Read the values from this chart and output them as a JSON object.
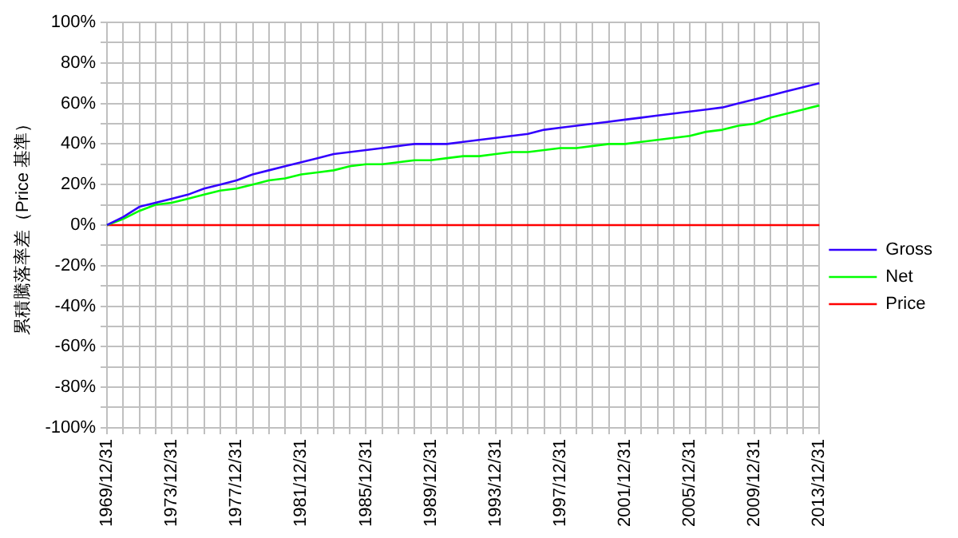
{
  "chart_data": {
    "type": "line",
    "ylabel": "累積騰落率差（Price 基準）",
    "categories": [
      "1969/12/31",
      null,
      null,
      null,
      "1973/12/31",
      null,
      null,
      null,
      "1977/12/31",
      null,
      null,
      null,
      "1981/12/31",
      null,
      null,
      null,
      "1985/12/31",
      null,
      null,
      null,
      "1989/12/31",
      null,
      null,
      null,
      "1993/12/31",
      null,
      null,
      null,
      "1997/12/31",
      null,
      null,
      null,
      "2001/12/31",
      null,
      null,
      null,
      "2005/12/31",
      null,
      null,
      null,
      "2009/12/31",
      null,
      null,
      null,
      "2013/12/31"
    ],
    "series": [
      {
        "name": "Gross",
        "color": "#3300ff",
        "values": [
          0,
          4,
          9,
          11,
          13,
          15,
          18,
          20,
          22,
          25,
          27,
          29,
          31,
          33,
          35,
          36,
          37,
          38,
          39,
          40,
          40,
          40,
          41,
          42,
          43,
          44,
          45,
          47,
          48,
          49,
          50,
          51,
          52,
          53,
          54,
          55,
          56,
          57,
          58,
          60,
          62,
          64,
          66,
          68,
          70
        ]
      },
      {
        "name": "Net",
        "color": "#00ff00",
        "values": [
          0,
          3,
          7,
          10,
          11,
          13,
          15,
          17,
          18,
          20,
          22,
          23,
          25,
          26,
          27,
          29,
          30,
          30,
          31,
          32,
          32,
          33,
          34,
          34,
          35,
          36,
          36,
          37,
          38,
          38,
          39,
          40,
          40,
          41,
          42,
          43,
          44,
          46,
          47,
          49,
          50,
          53,
          55,
          57,
          59
        ]
      },
      {
        "name": "Price",
        "color": "#ff0000",
        "values": [
          0,
          0,
          0,
          0,
          0,
          0,
          0,
          0,
          0,
          0,
          0,
          0,
          0,
          0,
          0,
          0,
          0,
          0,
          0,
          0,
          0,
          0,
          0,
          0,
          0,
          0,
          0,
          0,
          0,
          0,
          0,
          0,
          0,
          0,
          0,
          0,
          0,
          0,
          0,
          0,
          0,
          0,
          0,
          0,
          0
        ]
      }
    ],
    "ylim": [
      -100,
      100
    ],
    "yticks": [
      {
        "value": -100,
        "label": "-100%"
      },
      {
        "value": -90,
        "label": null
      },
      {
        "value": -80,
        "label": "-80%"
      },
      {
        "value": -70,
        "label": null
      },
      {
        "value": -60,
        "label": "-60%"
      },
      {
        "value": -50,
        "label": null
      },
      {
        "value": -40,
        "label": "-40%"
      },
      {
        "value": -30,
        "label": null
      },
      {
        "value": -20,
        "label": "-20%"
      },
      {
        "value": -10,
        "label": null
      },
      {
        "value": 0,
        "label": "0%"
      },
      {
        "value": 10,
        "label": null
      },
      {
        "value": 20,
        "label": "20%"
      },
      {
        "value": 30,
        "label": null
      },
      {
        "value": 40,
        "label": "40%"
      },
      {
        "value": 50,
        "label": null
      },
      {
        "value": 60,
        "label": "60%"
      },
      {
        "value": 70,
        "label": null
      },
      {
        "value": 80,
        "label": "80%"
      },
      {
        "value": 90,
        "label": null
      },
      {
        "value": 100,
        "label": "100%"
      }
    ],
    "grid": true,
    "legend": "right",
    "marker": "none",
    "line_style": "solid"
  }
}
